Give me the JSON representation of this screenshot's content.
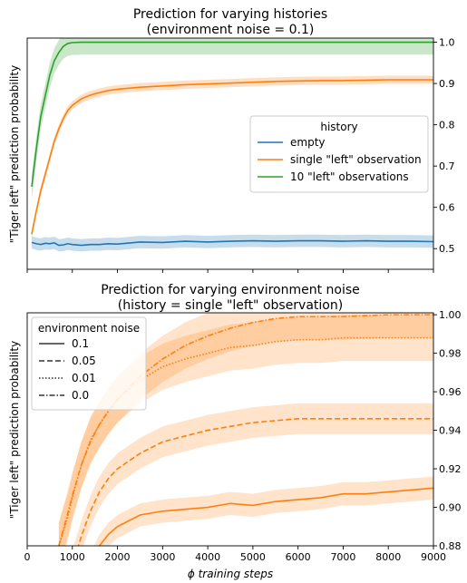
{
  "chart_data": [
    {
      "type": "line",
      "title": "Prediction for varying histories",
      "subtitle": "(environment noise = 0.1)",
      "xlabel": "",
      "ylabel": "\"Tiger left\" prediction probability",
      "xlim": [
        0,
        9000
      ],
      "ylim": [
        0.45,
        1.01
      ],
      "yticks": [
        0.5,
        0.6,
        0.7,
        0.8,
        0.9,
        1.0
      ],
      "ytick_labels": [
        "0.5",
        "0.6",
        "0.7",
        "0.8",
        "0.9",
        "1.0"
      ],
      "xticks": [
        0,
        1000,
        2000,
        3000,
        4000,
        5000,
        6000,
        7000,
        8000,
        9000
      ],
      "yaxis_side": "right",
      "grid": false,
      "legend": {
        "title": "history",
        "placement": "center-right"
      },
      "x": [
        100,
        200,
        300,
        400,
        500,
        600,
        700,
        800,
        900,
        1000,
        1200,
        1400,
        1600,
        1800,
        2000,
        2500,
        3000,
        3500,
        4000,
        4500,
        5000,
        5500,
        6000,
        6500,
        7000,
        7500,
        8000,
        8500,
        9000
      ],
      "series": [
        {
          "name": "empty",
          "color": "#1f77b4",
          "style": "solid",
          "values": [
            0.515,
            0.512,
            0.51,
            0.513,
            0.512,
            0.514,
            0.508,
            0.509,
            0.512,
            0.51,
            0.508,
            0.51,
            0.51,
            0.512,
            0.511,
            0.516,
            0.515,
            0.518,
            0.516,
            0.518,
            0.519,
            0.518,
            0.519,
            0.519,
            0.518,
            0.519,
            0.518,
            0.518,
            0.517
          ],
          "band": 0.015
        },
        {
          "name": "single \"left\" observation",
          "color": "#ff7f0e",
          "style": "solid",
          "values": [
            0.535,
            0.59,
            0.64,
            0.68,
            0.72,
            0.76,
            0.79,
            0.815,
            0.835,
            0.847,
            0.863,
            0.872,
            0.878,
            0.883,
            0.886,
            0.891,
            0.894,
            0.897,
            0.899,
            0.901,
            0.903,
            0.905,
            0.906,
            0.907,
            0.907,
            0.908,
            0.909,
            0.909,
            0.909
          ],
          "band": 0.01
        },
        {
          "name": "10 \"left\" observations",
          "color": "#2ca02c",
          "style": "solid",
          "values": [
            0.65,
            0.74,
            0.82,
            0.87,
            0.92,
            0.955,
            0.975,
            0.99,
            0.997,
            0.999,
            1.0,
            1.0,
            1.0,
            1.0,
            1.0,
            1.0,
            1.0,
            1.0,
            1.0,
            1.0,
            1.0,
            1.0,
            1.0,
            1.0,
            1.0,
            1.0,
            1.0,
            1.0,
            1.0
          ],
          "band": 0.03
        }
      ]
    },
    {
      "type": "line",
      "title": "Prediction for varying environment noise",
      "subtitle": "(history = single \"left\" observation)",
      "xlabel": "ϕ training steps",
      "ylabel": "\"Tiger left\" prediction probability",
      "xlim": [
        0,
        9000
      ],
      "ylim": [
        0.88,
        1.001
      ],
      "yticks": [
        0.88,
        0.9,
        0.92,
        0.94,
        0.96,
        0.98,
        1.0
      ],
      "ytick_labels": [
        "0.88",
        "0.90",
        "0.92",
        "0.94",
        "0.96",
        "0.98",
        "1.00"
      ],
      "xticks": [
        0,
        1000,
        2000,
        3000,
        4000,
        5000,
        6000,
        7000,
        8000,
        9000
      ],
      "xtick_labels": [
        "0",
        "1000",
        "2000",
        "3000",
        "4000",
        "5000",
        "6000",
        "7000",
        "8000",
        "9000"
      ],
      "yaxis_side": "right",
      "grid": false,
      "legend": {
        "title": "environment noise",
        "placement": "top-left"
      },
      "x": [
        700,
        900,
        1000,
        1200,
        1400,
        1600,
        1800,
        2000,
        2500,
        3000,
        3500,
        4000,
        4500,
        5000,
        5500,
        6000,
        6500,
        7000,
        7500,
        8000,
        8500,
        9000
      ],
      "series": [
        {
          "name": "0.1",
          "color": "#ff7f0e",
          "style": "solid",
          "values": [
            null,
            null,
            null,
            null,
            0.87,
            0.88,
            0.886,
            0.89,
            0.896,
            0.898,
            0.899,
            0.9,
            0.902,
            0.901,
            0.903,
            0.904,
            0.905,
            0.907,
            0.907,
            0.908,
            0.909,
            0.91
          ],
          "band": 0.006
        },
        {
          "name": "0.05",
          "color": "#ff7f0e",
          "style": "dashed",
          "values": [
            null,
            null,
            0.87,
            0.885,
            0.898,
            0.908,
            0.915,
            0.92,
            0.928,
            0.934,
            0.937,
            0.94,
            0.942,
            0.944,
            0.945,
            0.946,
            0.946,
            0.946,
            0.946,
            0.946,
            0.946,
            0.946
          ],
          "band": 0.008
        },
        {
          "name": "0.01",
          "color": "#ff7f0e",
          "style": "dotted",
          "values": [
            0.88,
            0.895,
            0.905,
            0.922,
            0.935,
            0.943,
            0.95,
            0.956,
            0.966,
            0.973,
            0.977,
            0.98,
            0.983,
            0.984,
            0.986,
            0.987,
            0.987,
            0.988,
            0.988,
            0.988,
            0.988,
            0.988
          ],
          "band": 0.012
        },
        {
          "name": "0.0",
          "color": "#ff7f0e",
          "style": "dashdot",
          "values": [
            0.88,
            0.897,
            0.906,
            0.922,
            0.934,
            0.943,
            0.95,
            0.956,
            0.968,
            0.977,
            0.984,
            0.989,
            0.993,
            0.996,
            0.998,
            0.999,
            0.999,
            0.999,
            0.9995,
            1.0,
            1.0,
            1.0
          ],
          "band": 0.012
        }
      ]
    }
  ]
}
